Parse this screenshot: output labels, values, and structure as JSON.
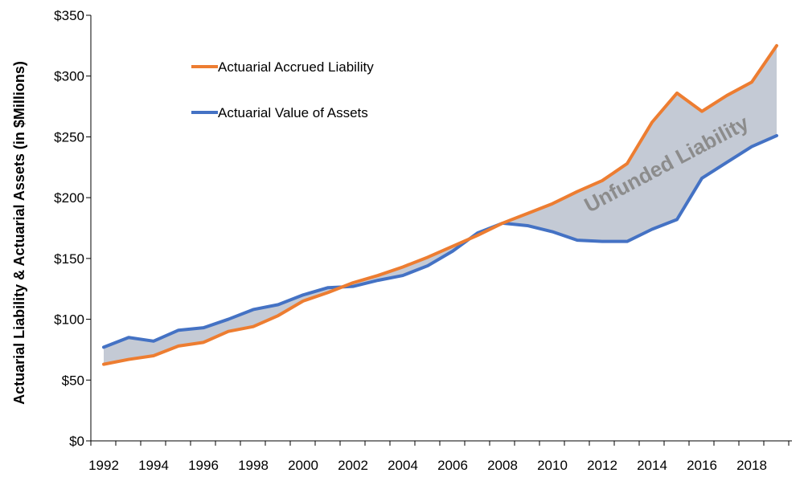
{
  "chart_data": {
    "type": "line",
    "title": "",
    "xlabel": "",
    "ylabel": "Actuarial Liability & Actuarial Assets (in $Millions)",
    "ylim": [
      0,
      350
    ],
    "y_ticks": [
      0,
      50,
      100,
      150,
      200,
      250,
      300,
      350
    ],
    "y_tick_labels": [
      "$0",
      "$50",
      "$100",
      "$150",
      "$200",
      "$250",
      "$300",
      "$350"
    ],
    "x": [
      1992,
      1993,
      1994,
      1995,
      1996,
      1997,
      1998,
      1999,
      2000,
      2001,
      2002,
      2003,
      2004,
      2005,
      2006,
      2007,
      2008,
      2009,
      2010,
      2011,
      2012,
      2013,
      2014,
      2015,
      2016,
      2017,
      2018,
      2019
    ],
    "x_tick_labels": [
      "1992",
      "1994",
      "1996",
      "1998",
      "2000",
      "2002",
      "2004",
      "2006",
      "2008",
      "2010",
      "2012",
      "2014",
      "2016",
      "2018"
    ],
    "series": [
      {
        "name": "Actuarial Accrued Liability",
        "color": "#ED7D31",
        "values": [
          63,
          67,
          70,
          78,
          81,
          90,
          94,
          103,
          115,
          122,
          130,
          136,
          143,
          151,
          160,
          169,
          179,
          187,
          195,
          205,
          214,
          228,
          262,
          286,
          271,
          284,
          295,
          325
        ]
      },
      {
        "name": "Actuarial Value of Assets",
        "color": "#4472C4",
        "values": [
          77,
          85,
          82,
          91,
          93,
          100,
          108,
          112,
          120,
          126,
          127,
          132,
          136,
          144,
          156,
          171,
          179,
          177,
          172,
          165,
          164,
          164,
          174,
          182,
          216,
          229,
          242,
          251
        ]
      }
    ],
    "shaded_area": {
      "label": "Unfunded Liability",
      "color": "#C4CAD5",
      "between": [
        "Actuarial Accrued Liability",
        "Actuarial Value of Assets"
      ]
    },
    "grid": false,
    "legend": "top-left"
  }
}
